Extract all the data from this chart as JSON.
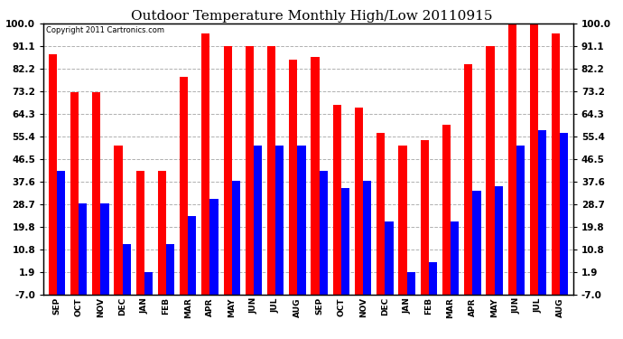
{
  "title": "Outdoor Temperature Monthly High/Low 20110915",
  "copyright": "Copyright 2011 Cartronics.com",
  "months": [
    "SEP",
    "OCT",
    "NOV",
    "DEC",
    "JAN",
    "FEB",
    "MAR",
    "APR",
    "MAY",
    "JUN",
    "JUL",
    "AUG",
    "SEP",
    "OCT",
    "NOV",
    "DEC",
    "JAN",
    "FEB",
    "MAR",
    "APR",
    "MAY",
    "JUN",
    "JUL",
    "AUG"
  ],
  "highs": [
    88,
    73,
    73,
    52,
    42,
    42,
    79,
    96,
    91,
    91,
    91,
    86,
    87,
    68,
    67,
    57,
    52,
    54,
    60,
    84,
    91,
    100,
    100,
    96
  ],
  "lows": [
    42,
    29,
    29,
    13,
    2,
    13,
    24,
    31,
    38,
    52,
    52,
    52,
    42,
    35,
    38,
    22,
    2,
    6,
    22,
    34,
    36,
    52,
    58,
    57
  ],
  "ylim": [
    -7.0,
    100.0
  ],
  "yticks": [
    -7.0,
    1.9,
    10.8,
    19.8,
    28.7,
    37.6,
    46.5,
    55.4,
    64.3,
    73.2,
    82.2,
    91.1,
    100.0
  ],
  "ytick_labels": [
    "-7.0",
    "1.9",
    "10.8",
    "19.8",
    "28.7",
    "37.6",
    "46.5",
    "55.4",
    "64.3",
    "73.2",
    "82.2",
    "91.1",
    "100.0"
  ],
  "bar_color_high": "#ff0000",
  "bar_color_low": "#0000ff",
  "bg_color": "#ffffff",
  "plot_bg_color": "#ffffff",
  "grid_color": "#b0b0b0",
  "title_fontsize": 11,
  "bar_width": 0.38,
  "figsize": [
    6.9,
    3.75
  ],
  "dpi": 100
}
